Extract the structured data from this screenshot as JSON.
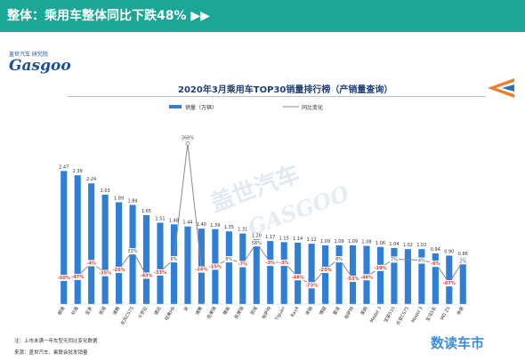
{
  "header": {
    "title": "整体：乘用车整体同比下跌48% ▶▶"
  },
  "logo": {
    "small": "盖世汽车 研究院",
    "main": "Gasgoo"
  },
  "watermark": {
    "cn": "盖世汽车",
    "en": "GASGOO"
  },
  "footnotes": {
    "note": "注：上市未满一年车型无同比变化数据",
    "source": "来源：盖世汽车、乘联会批发销量"
  },
  "brand": "数读车市",
  "colors": {
    "header": "#1aa795",
    "bar": "#2f7fd6",
    "line": "#7f8a99",
    "marker": "#ffffff",
    "negative_label": "#e53935",
    "positive_label": "#4a4a4a",
    "accent_orange": "#f07d2a",
    "accent_blue": "#2d6fb7"
  },
  "chart_data": {
    "type": "bar",
    "title": "2020年3月乘用车TOP30销量排行榜（产销量查询）",
    "legend": [
      {
        "name": "销量（万辆）",
        "kind": "bar"
      },
      {
        "name": "同比变化",
        "kind": "line"
      }
    ],
    "legend_placement": "top-left",
    "grid": false,
    "categories": [
      "朗逸",
      "轩逸",
      "宝来",
      "思域",
      "速腾",
      "东风CS75",
      "卡罗拉",
      "捷达",
      "哈弗H6",
      "宋",
      "速腾",
      "凯美瑞",
      "雅阁",
      "凯美瑞",
      "思域",
      "帕萨特",
      "Tiguan",
      "Rav4",
      "奔驰",
      "博越",
      "雷凌",
      "帕萨特",
      "英朗",
      "Model 3",
      "宝骏510",
      "长安CS75",
      "Model 3",
      "宝马5系",
      "MG ZS",
      "帝豪"
    ],
    "series": [
      {
        "name": "销量（万辆）",
        "type": "bar",
        "values": [
          2.47,
          2.39,
          2.24,
          2.03,
          1.89,
          1.84,
          1.65,
          1.51,
          1.48,
          1.44,
          1.4,
          1.39,
          1.35,
          1.31,
          1.2,
          1.17,
          1.15,
          1.14,
          1.12,
          1.09,
          1.09,
          1.09,
          1.08,
          1.06,
          1.04,
          1.02,
          1.02,
          0.94,
          0.9,
          0.86
        ],
        "labels": [
          "2.47",
          "2.39",
          "2.24",
          "2.03",
          "1.89",
          "1.84",
          "1.65",
          "1.51",
          "1.48",
          "1.44",
          "1.40",
          "1.39",
          "1.35",
          "1.31",
          "1.20",
          "1.17",
          "1.15",
          "1.14",
          "1.12",
          "1.09",
          "1.09",
          "1.09",
          "1.08",
          "1.06",
          "1.04",
          "1.02",
          "1.02",
          "0.94",
          "0.90",
          "0.86"
        ]
      },
      {
        "name": "同比变化",
        "type": "line",
        "values": [
          -50,
          -47,
          -4,
          -35,
          -25,
          33,
          -43,
          -33,
          8,
          368,
          -24,
          -15,
          8,
          -7,
          58,
          -3,
          -3,
          -48,
          -73,
          -25,
          8,
          -53,
          -48,
          -19,
          7,
          null,
          4,
          -6,
          -67,
          2
        ],
        "labels": [
          "-50%",
          "-47%",
          "-4%",
          "-35%",
          "-25%",
          "33%",
          "-43%",
          "-33%",
          "8%",
          "368%",
          "-24%",
          "-15%",
          "8%",
          "-7%",
          "58%",
          "-3%",
          "-3%",
          "-48%",
          "-73%",
          "-25%",
          "8%",
          "-53%",
          "-48%",
          "-19%",
          "7%",
          "",
          "4%",
          "-6%",
          "-67%",
          "2%"
        ]
      }
    ],
    "ylim_bar": [
      0,
      3.0
    ],
    "ylim_line": [
      -100,
      400
    ]
  }
}
